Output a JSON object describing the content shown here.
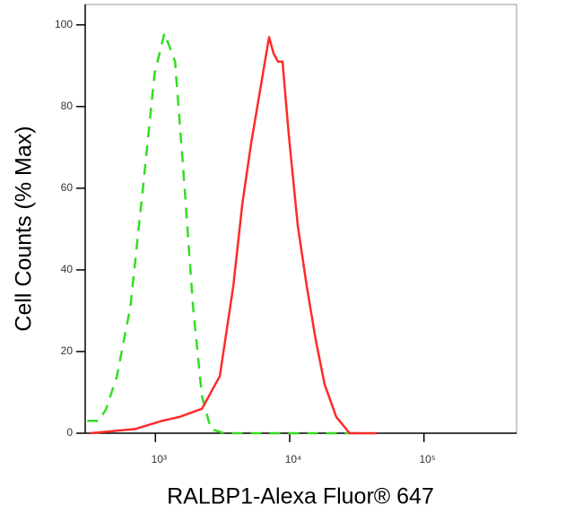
{
  "chart_data": {
    "type": "line",
    "x_label": "RALBP1-Alexa Fluor® 647",
    "y_label": "Cell Counts (% Max)",
    "log_x": true,
    "xlim": [
      300,
      490000
    ],
    "xticks": [
      {
        "value": 1000,
        "label": "10³"
      },
      {
        "value": 10000,
        "label": "10⁴"
      },
      {
        "value": 100000,
        "label": "10⁵"
      }
    ],
    "ylim": [
      0,
      105
    ],
    "yticks": [
      0,
      20,
      40,
      60,
      80,
      100
    ],
    "series": [
      {
        "color": "#33dd22",
        "dash": true,
        "x": [
          311,
          380,
          430,
          517,
          651,
          819,
          985,
          1166,
          1402,
          1634,
          1905,
          2222,
          2590,
          3260,
          32600
        ],
        "values": [
          3,
          3,
          6,
          14,
          31,
          62,
          88,
          98,
          91,
          62,
          31,
          9,
          1,
          0,
          0
        ]
      },
      {
        "color": "#ff2a2a",
        "dash": false,
        "x": [
          326,
          703,
          1114,
          1514,
          2222,
          3020,
          3800,
          4433,
          5164,
          6026,
          7027,
          7586,
          8185,
          8850,
          9845,
          11480,
          13390,
          15600,
          18200,
          22230,
          27970,
          44360
        ],
        "values": [
          0,
          1,
          3,
          4,
          6,
          14,
          36,
          56,
          71,
          84,
          97,
          93,
          91,
          91,
          73,
          51,
          36,
          23,
          12,
          4,
          0,
          0
        ]
      }
    ]
  }
}
